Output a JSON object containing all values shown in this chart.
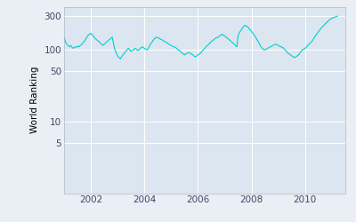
{
  "ylabel": "World Ranking",
  "line_color": "#00CED1",
  "fig_bg_color": "#EAEFF5",
  "ax_bg_color": "#dce6f0",
  "xlim_start": 2001.0,
  "xlim_end": 2011.5,
  "ylim_bottom": 1,
  "ylim_top": 400,
  "yticks": [
    5,
    10,
    50,
    100,
    300
  ],
  "xticks": [
    2002,
    2004,
    2006,
    2008,
    2010
  ],
  "x": [
    2001.0,
    2001.05,
    2001.1,
    2001.15,
    2001.2,
    2001.25,
    2001.3,
    2001.35,
    2001.4,
    2001.45,
    2001.5,
    2001.55,
    2001.6,
    2001.65,
    2001.7,
    2001.75,
    2001.8,
    2001.85,
    2001.9,
    2001.95,
    2002.0,
    2002.05,
    2002.1,
    2002.15,
    2002.2,
    2002.25,
    2002.3,
    2002.35,
    2002.4,
    2002.45,
    2002.5,
    2002.55,
    2002.6,
    2002.65,
    2002.7,
    2002.75,
    2002.8,
    2002.85,
    2002.9,
    2002.95,
    2003.0,
    2003.05,
    2003.1,
    2003.15,
    2003.2,
    2003.25,
    2003.3,
    2003.35,
    2003.4,
    2003.45,
    2003.5,
    2003.55,
    2003.6,
    2003.65,
    2003.7,
    2003.75,
    2003.8,
    2003.85,
    2003.9,
    2003.95,
    2004.0,
    2004.05,
    2004.1,
    2004.15,
    2004.2,
    2004.25,
    2004.3,
    2004.35,
    2004.4,
    2004.45,
    2004.5,
    2004.55,
    2004.6,
    2004.65,
    2004.7,
    2004.75,
    2004.8,
    2004.85,
    2004.9,
    2004.95,
    2005.0,
    2005.05,
    2005.1,
    2005.15,
    2005.2,
    2005.25,
    2005.3,
    2005.35,
    2005.4,
    2005.45,
    2005.5,
    2005.55,
    2005.6,
    2005.65,
    2005.7,
    2005.75,
    2005.8,
    2005.85,
    2005.9,
    2005.95,
    2006.0,
    2006.05,
    2006.1,
    2006.15,
    2006.2,
    2006.25,
    2006.3,
    2006.35,
    2006.4,
    2006.45,
    2006.5,
    2006.55,
    2006.6,
    2006.65,
    2006.7,
    2006.75,
    2006.8,
    2006.85,
    2006.9,
    2006.95,
    2007.0,
    2007.05,
    2007.1,
    2007.15,
    2007.2,
    2007.25,
    2007.3,
    2007.35,
    2007.4,
    2007.45,
    2007.5,
    2007.55,
    2007.6,
    2007.65,
    2007.7,
    2007.75,
    2007.8,
    2007.85,
    2007.9,
    2007.95,
    2008.0,
    2008.05,
    2008.1,
    2008.15,
    2008.2,
    2008.25,
    2008.3,
    2008.35,
    2008.4,
    2008.45,
    2008.5,
    2008.55,
    2008.6,
    2008.65,
    2008.7,
    2008.75,
    2008.8,
    2008.85,
    2008.9,
    2008.95,
    2009.0,
    2009.05,
    2009.1,
    2009.15,
    2009.2,
    2009.25,
    2009.3,
    2009.35,
    2009.4,
    2009.45,
    2009.5,
    2009.55,
    2009.6,
    2009.65,
    2009.7,
    2009.75,
    2009.8,
    2009.85,
    2009.9,
    2009.95,
    2010.0,
    2010.05,
    2010.1,
    2010.15,
    2010.2,
    2010.25,
    2010.3,
    2010.35,
    2010.4,
    2010.45,
    2010.5,
    2010.55,
    2010.6,
    2010.65,
    2010.7,
    2010.75,
    2010.8,
    2010.85,
    2010.9,
    2010.95,
    2011.0,
    2011.05,
    2011.1,
    2011.15,
    2011.2
  ],
  "y": [
    150,
    130,
    120,
    115,
    110,
    115,
    108,
    105,
    110,
    108,
    112,
    110,
    115,
    118,
    125,
    130,
    140,
    150,
    160,
    165,
    170,
    160,
    155,
    145,
    140,
    135,
    130,
    125,
    120,
    115,
    120,
    125,
    130,
    135,
    140,
    145,
    150,
    120,
    100,
    90,
    82,
    78,
    75,
    80,
    85,
    90,
    95,
    100,
    105,
    100,
    95,
    98,
    100,
    105,
    102,
    98,
    100,
    105,
    110,
    108,
    105,
    102,
    100,
    105,
    115,
    125,
    130,
    140,
    145,
    150,
    148,
    145,
    140,
    138,
    135,
    130,
    128,
    125,
    120,
    118,
    115,
    112,
    110,
    108,
    105,
    100,
    98,
    95,
    90,
    88,
    85,
    88,
    90,
    92,
    90,
    88,
    85,
    82,
    80,
    82,
    85,
    88,
    90,
    95,
    100,
    105,
    110,
    115,
    120,
    125,
    130,
    135,
    140,
    145,
    148,
    150,
    155,
    160,
    165,
    160,
    155,
    150,
    145,
    140,
    135,
    130,
    125,
    120,
    115,
    110,
    160,
    175,
    185,
    200,
    210,
    220,
    215,
    210,
    200,
    190,
    180,
    170,
    160,
    150,
    140,
    130,
    120,
    110,
    105,
    100,
    100,
    102,
    105,
    108,
    110,
    112,
    115,
    118,
    120,
    118,
    115,
    112,
    110,
    108,
    105,
    100,
    95,
    90,
    88,
    85,
    82,
    80,
    78,
    80,
    82,
    85,
    90,
    95,
    100,
    102,
    105,
    110,
    115,
    120,
    125,
    130,
    140,
    150,
    160,
    170,
    180,
    190,
    200,
    210,
    220,
    230,
    240,
    250,
    260,
    270,
    275,
    280,
    285,
    290,
    295
  ]
}
